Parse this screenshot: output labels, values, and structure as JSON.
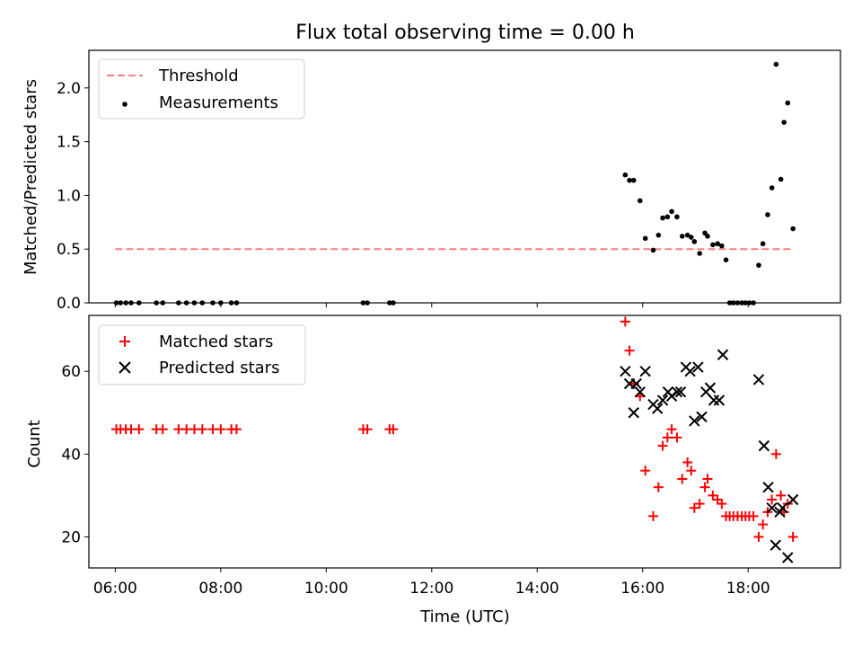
{
  "title": "Flux total observing time = 0.00 h",
  "colors": {
    "threshold": "#ff7f7f",
    "measurement": "#000000",
    "matched": "#ff0000",
    "predicted": "#000000"
  },
  "chart_data": [
    {
      "type": "scatter",
      "title": "Flux total observing time = 0.00 h",
      "ylabel": "Matched/Predicted stars",
      "xlabel": "",
      "xlim_hours": [
        5.5,
        19.75
      ],
      "ylim": [
        0,
        2.35
      ],
      "yticks": [
        0.0,
        0.5,
        1.0,
        1.5,
        2.0
      ],
      "ytick_labels": [
        "0.0",
        "0.5",
        "1.0",
        "1.5",
        "2.0"
      ],
      "legend": {
        "position": "top-left",
        "entries": [
          "Threshold",
          "Measurements"
        ]
      },
      "threshold": {
        "name": "Threshold",
        "value": 0.5,
        "x_start": 6.0,
        "x_end": 18.8,
        "style": "dashed"
      },
      "series": [
        {
          "name": "Measurements",
          "x": [
            6.02,
            6.1,
            6.2,
            6.3,
            6.45,
            6.78,
            6.9,
            7.2,
            7.35,
            7.5,
            7.65,
            7.85,
            8.0,
            8.2,
            8.3,
            10.7,
            10.78,
            11.2,
            11.27,
            15.67,
            15.75,
            15.83,
            15.95,
            16.05,
            16.2,
            16.3,
            16.38,
            16.47,
            16.55,
            16.65,
            16.75,
            16.85,
            16.92,
            16.98,
            17.08,
            17.18,
            17.23,
            17.33,
            17.42,
            17.5,
            17.58,
            17.65,
            17.72,
            17.8,
            17.88,
            17.95,
            18.02,
            18.1,
            18.2,
            18.28,
            18.37,
            18.45,
            18.53,
            18.62,
            18.68,
            18.75,
            18.85
          ],
          "y": [
            0,
            0,
            0,
            0,
            0,
            0,
            0,
            0,
            0,
            0,
            0,
            0,
            0,
            0,
            0,
            0,
            0,
            0,
            0,
            1.19,
            1.14,
            1.14,
            0.95,
            0.6,
            0.49,
            0.63,
            0.79,
            0.8,
            0.85,
            0.8,
            0.62,
            0.63,
            0.61,
            0.57,
            0.46,
            0.65,
            0.62,
            0.54,
            0.55,
            0.53,
            0.4,
            0,
            0,
            0,
            0,
            0,
            0,
            0,
            0.35,
            0.55,
            0.82,
            1.07,
            2.22,
            1.15,
            1.68,
            1.86,
            0.69
          ]
        }
      ]
    },
    {
      "type": "scatter",
      "xlabel": "Time (UTC)",
      "ylabel": "Count",
      "xlim_hours": [
        5.5,
        19.75
      ],
      "ylim": [
        12.5,
        73.5
      ],
      "yticks": [
        20,
        40,
        60
      ],
      "ytick_labels": [
        "20",
        "40",
        "60"
      ],
      "xticks_hours": [
        6,
        8,
        10,
        12,
        14,
        16,
        18
      ],
      "xtick_labels": [
        "06:00",
        "08:00",
        "10:00",
        "12:00",
        "14:00",
        "16:00",
        "18:00"
      ],
      "legend": {
        "position": "top-left",
        "entries": [
          "Matched stars",
          "Predicted stars"
        ]
      },
      "series": [
        {
          "name": "Matched stars",
          "marker": "+",
          "x": [
            6.02,
            6.1,
            6.2,
            6.3,
            6.45,
            6.78,
            6.9,
            7.2,
            7.35,
            7.5,
            7.65,
            7.85,
            8.0,
            8.2,
            8.3,
            10.7,
            10.78,
            11.2,
            11.27,
            15.67,
            15.75,
            15.83,
            15.95,
            16.05,
            16.2,
            16.3,
            16.38,
            16.47,
            16.55,
            16.65,
            16.75,
            16.85,
            16.92,
            16.98,
            17.08,
            17.18,
            17.23,
            17.33,
            17.42,
            17.5,
            17.58,
            17.65,
            17.72,
            17.8,
            17.88,
            17.95,
            18.02,
            18.1,
            18.2,
            18.28,
            18.37,
            18.45,
            18.53,
            18.62,
            18.68,
            18.75,
            18.85
          ],
          "y": [
            46,
            46,
            46,
            46,
            46,
            46,
            46,
            46,
            46,
            46,
            46,
            46,
            46,
            46,
            46,
            46,
            46,
            46,
            46,
            72,
            65,
            57,
            54,
            36,
            25,
            32,
            42,
            44,
            46,
            44,
            34,
            38,
            36,
            27,
            28,
            32,
            34,
            30,
            29,
            28,
            25,
            25,
            25,
            25,
            25,
            25,
            25,
            25,
            20,
            23,
            26,
            29,
            40,
            30,
            26,
            28,
            20
          ]
        },
        {
          "name": "Predicted stars",
          "marker": "x",
          "x": [
            15.67,
            15.75,
            15.83,
            15.88,
            15.95,
            16.05,
            16.2,
            16.28,
            16.38,
            16.48,
            16.55,
            16.65,
            16.72,
            16.82,
            16.9,
            16.98,
            17.05,
            17.12,
            17.2,
            17.28,
            17.35,
            17.45,
            17.52,
            18.2,
            18.3,
            18.38,
            18.45,
            18.52,
            18.6,
            18.65,
            18.75,
            18.85
          ],
          "y": [
            60,
            57,
            50,
            57,
            55,
            60,
            52,
            51,
            53,
            55,
            54,
            55,
            55,
            61,
            60,
            48,
            61,
            49,
            55,
            56,
            53,
            53,
            64,
            58,
            42,
            32,
            27,
            18,
            26,
            27,
            15,
            29
          ]
        }
      ]
    }
  ]
}
